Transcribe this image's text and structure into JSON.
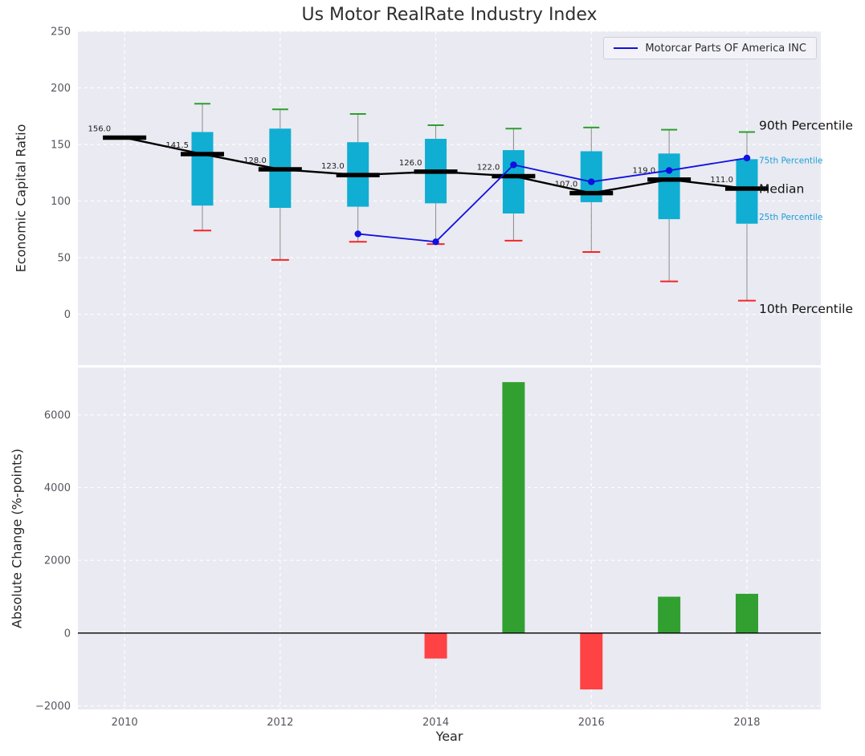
{
  "figure_title": "Us Motor RealRate Industry Index",
  "chart_data": [
    {
      "type": "boxplot",
      "title": "Us Motor RealRate Industry Index",
      "ylabel": "Economic Capital Ratio",
      "xlim": [
        2009.4,
        2018.95
      ],
      "ylim": [
        -45,
        250
      ],
      "yticks": [
        0,
        50,
        100,
        150,
        200,
        250
      ],
      "grid": true,
      "legend_position": "upper right",
      "legend_entries": [
        "Motorcar Parts OF America INC"
      ],
      "boxes": [
        {
          "year": 2010,
          "median": 156.0,
          "median_label": "156.0",
          "q1": null,
          "q3": null,
          "p10": null,
          "p90": null
        },
        {
          "year": 2011,
          "median": 141.5,
          "median_label": "141.5",
          "q1": 96,
          "q3": 161,
          "p10": 74,
          "p90": 186
        },
        {
          "year": 2012,
          "median": 128.0,
          "median_label": "128.0",
          "q1": 94,
          "q3": 164,
          "p10": 48,
          "p90": 181
        },
        {
          "year": 2013,
          "median": 123.0,
          "median_label": "123.0",
          "q1": 95,
          "q3": 152,
          "p10": 64,
          "p90": 177
        },
        {
          "year": 2014,
          "median": 126.0,
          "median_label": "126.0",
          "q1": 98,
          "q3": 155,
          "p10": 62,
          "p90": 167
        },
        {
          "year": 2015,
          "median": 122.0,
          "median_label": "122.0",
          "q1": 89,
          "q3": 145,
          "p10": 65,
          "p90": 164
        },
        {
          "year": 2016,
          "median": 107.0,
          "median_label": "107.0",
          "q1": 99,
          "q3": 144,
          "p10": 55,
          "p90": 165
        },
        {
          "year": 2017,
          "median": 119.0,
          "median_label": "119.0",
          "q1": 84,
          "q3": 142,
          "p10": 29,
          "p90": 163
        },
        {
          "year": 2018,
          "median": 111.0,
          "median_label": "111.0",
          "q1": 80,
          "q3": 137,
          "p10": 12,
          "p90": 161
        }
      ],
      "series": [
        {
          "name": "Motorcar Parts OF America INC",
          "color": "#1010e0",
          "x": [
            2013,
            2014,
            2015,
            2016,
            2017,
            2018
          ],
          "y": [
            71,
            64,
            132,
            117,
            127,
            138
          ]
        }
      ],
      "annotations": [
        {
          "text": "90th Percentile",
          "y": 167,
          "color": "#141414",
          "size": 15.5
        },
        {
          "text": "75th Percentile",
          "y": 136,
          "color": "#199fd4",
          "size": 10.5
        },
        {
          "text": "Median",
          "y": 111,
          "color": "#141414",
          "size": 15.5
        },
        {
          "text": "25th Percentile",
          "y": 86,
          "color": "#199fd4",
          "size": 10.5
        },
        {
          "text": "10th Percentile",
          "y": 5,
          "color": "#141414",
          "size": 15.5
        }
      ],
      "colors": {
        "box_fill": "#10aed2",
        "median_line": "#000000",
        "whisker": "#8c8c8c",
        "cap_top": "#2ca02c",
        "cap_bottom": "#f42525",
        "axes_bg": "#eaeaf2",
        "grid": "#ffffff",
        "tick": "#55555e"
      }
    },
    {
      "type": "bar",
      "ylabel": "Absolute Change (%-points)",
      "xlabel": "Year",
      "xlim": [
        2009.4,
        2018.95
      ],
      "ylim": [
        -2100,
        7300
      ],
      "yticks": [
        -2000,
        0,
        2000,
        4000,
        6000
      ],
      "xticks": [
        2010,
        2012,
        2014,
        2016,
        2018
      ],
      "bars": [
        {
          "year": 2014,
          "value": -700
        },
        {
          "year": 2015,
          "value": 6900
        },
        {
          "year": 2016,
          "value": -1550
        },
        {
          "year": 2017,
          "value": 1000
        },
        {
          "year": 2018,
          "value": 1080
        }
      ],
      "colors": {
        "positive": "#31a031",
        "negative": "#ff4243",
        "zero_line": "#000000",
        "axes_bg": "#eaeaf2",
        "grid": "#ffffff",
        "tick": "#55555e"
      }
    }
  ]
}
